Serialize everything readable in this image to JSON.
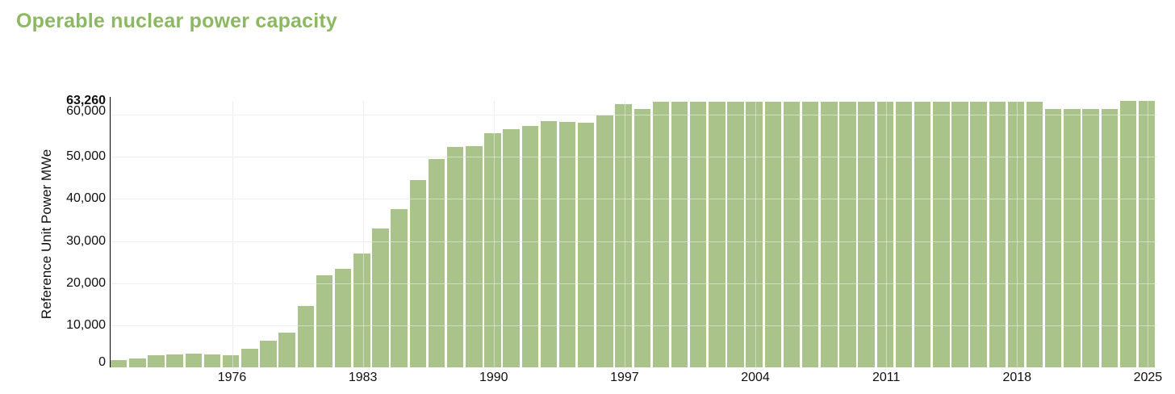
{
  "page": {
    "title": "Operable nuclear power capacity"
  },
  "colors": {
    "title_green": "#8cb862",
    "bar_green": "#a9c38a",
    "gridline_gray": "#e0e0e0",
    "axis_black": "#000000",
    "tick_text": "#0f0f0f"
  },
  "chart_data": {
    "type": "bar",
    "title": "Operable nuclear power capacity",
    "xlabel": "",
    "ylabel": "Reference Unit Power MWe",
    "unit": "MWe",
    "ylim": [
      0,
      63260
    ],
    "y_max_label": "63,260",
    "grid": true,
    "legend": false,
    "y_ticks": [
      {
        "value": 0,
        "label": "0"
      },
      {
        "value": 10000,
        "label": "10,000"
      },
      {
        "value": 20000,
        "label": "20,000"
      },
      {
        "value": 30000,
        "label": "30,000"
      },
      {
        "value": 40000,
        "label": "40,000"
      },
      {
        "value": 50000,
        "label": "50,000"
      },
      {
        "value": 60000,
        "label": "60,000"
      }
    ],
    "x_ticks": [
      1976,
      1983,
      1990,
      1997,
      2004,
      2011,
      2018,
      2025
    ],
    "categories": [
      1970,
      1971,
      1972,
      1973,
      1974,
      1975,
      1976,
      1977,
      1978,
      1979,
      1980,
      1981,
      1982,
      1983,
      1984,
      1985,
      1986,
      1987,
      1988,
      1989,
      1990,
      1991,
      1992,
      1993,
      1994,
      1995,
      1996,
      1997,
      1998,
      1999,
      2000,
      2001,
      2002,
      2003,
      2004,
      2005,
      2006,
      2007,
      2008,
      2009,
      2010,
      2011,
      2012,
      2013,
      2014,
      2015,
      2016,
      2017,
      2018,
      2019,
      2020,
      2021,
      2022,
      2023,
      2024,
      2025
    ],
    "values": [
      1700,
      2200,
      2850,
      3000,
      3200,
      3150,
      2950,
      4400,
      6400,
      8300,
      14500,
      21800,
      23400,
      27000,
      33000,
      37500,
      44500,
      49400,
      52400,
      52600,
      55600,
      56600,
      57400,
      58500,
      58200,
      58000,
      59800,
      62400,
      61300,
      63130,
      63130,
      63130,
      63130,
      63130,
      63130,
      63130,
      63130,
      63130,
      63130,
      63130,
      63130,
      63130,
      63130,
      63130,
      63130,
      63130,
      63130,
      63130,
      63130,
      63130,
      61370,
      61370,
      61370,
      61370,
      63260,
      63260
    ]
  }
}
